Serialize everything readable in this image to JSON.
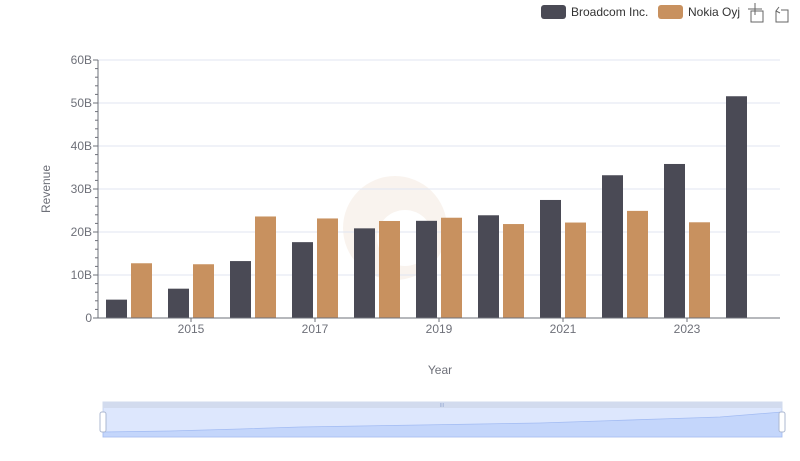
{
  "legend": {
    "items": [
      {
        "label": "Broadcom Inc.",
        "color": "#4a4a55"
      },
      {
        "label": "Nokia Oyj",
        "color": "#c8915f"
      }
    ]
  },
  "toolbox": {
    "zoom_icon": "zoom-icon",
    "restore_icon": "restore-icon"
  },
  "chart_data": {
    "type": "bar",
    "categories": [
      "2014",
      "2015",
      "2016",
      "2017",
      "2018",
      "2019",
      "2020",
      "2021",
      "2022",
      "2023",
      "2024"
    ],
    "x_tick_labels": [
      "2015",
      "2017",
      "2019",
      "2021",
      "2023"
    ],
    "series": [
      {
        "name": "Broadcom Inc.",
        "color": "#4a4a55",
        "values": [
          4.27,
          6.82,
          13.24,
          17.64,
          20.85,
          22.6,
          23.89,
          27.45,
          33.2,
          35.82,
          51.57
        ]
      },
      {
        "name": "Nokia Oyj",
        "color": "#c8915f",
        "values": [
          12.73,
          12.5,
          23.61,
          23.15,
          22.56,
          23.32,
          21.85,
          22.2,
          24.91,
          22.26,
          null
        ]
      }
    ],
    "y_ticks": [
      "0",
      "10B",
      "20B",
      "30B",
      "40B",
      "50B",
      "60B"
    ],
    "ylim": [
      0,
      60
    ],
    "xlabel": "Year",
    "ylabel": "Revenue",
    "title": ""
  },
  "data_zoom": {
    "handle_label": "III"
  }
}
